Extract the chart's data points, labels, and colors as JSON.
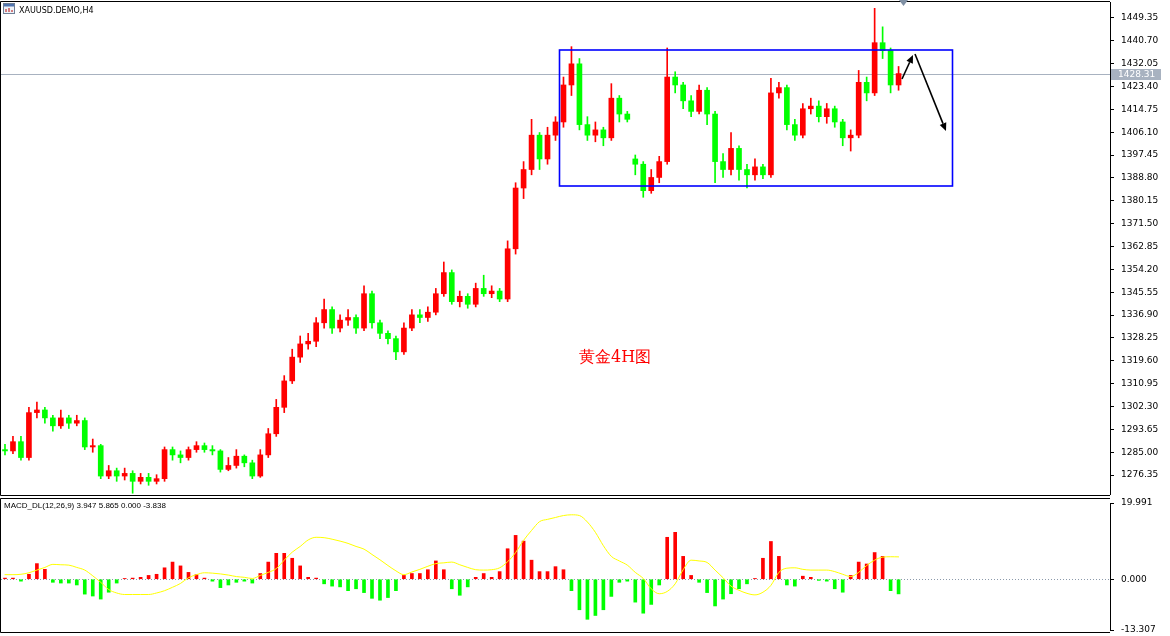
{
  "chart_data": [
    {
      "type": "candlestick",
      "title": "XAUUSD.DEMO,H4",
      "categories": [
        null,
        null,
        null,
        null,
        null,
        null,
        null,
        null,
        null,
        null,
        null,
        null,
        null,
        null,
        null,
        null,
        null,
        null,
        null,
        null,
        null,
        null,
        null,
        null,
        null,
        null,
        null,
        null,
        null,
        null,
        null,
        null,
        null,
        null,
        null,
        null,
        null,
        null,
        null,
        null,
        null,
        null,
        null,
        null,
        null,
        null,
        null,
        null,
        null,
        null,
        null,
        null,
        null,
        null,
        null,
        null,
        null,
        null,
        null,
        null,
        null,
        null,
        null,
        null,
        null,
        null,
        null,
        null,
        null,
        null,
        null,
        null,
        null,
        null,
        null,
        null,
        null,
        null,
        null,
        null,
        null,
        null,
        null,
        null,
        null,
        null,
        null,
        null,
        null,
        null,
        null,
        null,
        null,
        null,
        null,
        null,
        null,
        null,
        null,
        null,
        null,
        null,
        null,
        null,
        null,
        null,
        null,
        null,
        null,
        null,
        null,
        null,
        null,
        null,
        null,
        null,
        null,
        null,
        null,
        null,
        null,
        null,
        null,
        null,
        null,
        null,
        null,
        null,
        null,
        null,
        null,
        null,
        null,
        null,
        null,
        null,
        null,
        null,
        null
      ],
      "ohlc": [
        [
          1286,
          1288,
          1284,
          1285.5
        ],
        [
          1285.5,
          1291,
          1284.5,
          1289
        ],
        [
          1289,
          1291,
          1282,
          1283
        ],
        [
          1283,
          1302,
          1282,
          1300
        ],
        [
          1300,
          1304,
          1298,
          1301
        ],
        [
          1301,
          1302,
          1296,
          1298
        ],
        [
          1298,
          1299,
          1293,
          1295
        ],
        [
          1295,
          1301,
          1294,
          1298
        ],
        [
          1298,
          1299,
          1294,
          1296
        ],
        [
          1296,
          1299,
          1295,
          1297
        ],
        [
          1297,
          1298,
          1286,
          1287
        ],
        [
          1287,
          1290,
          1285,
          1287.5
        ],
        [
          1287.5,
          1288,
          1275,
          1276
        ],
        [
          1276,
          1280,
          1275,
          1278
        ],
        [
          1278,
          1279,
          1274,
          1276
        ],
        [
          1276,
          1279,
          1274.5,
          1277
        ],
        [
          1277,
          1278,
          1269.5,
          1274
        ],
        [
          1274,
          1277,
          1273,
          1275.5
        ],
        [
          1275.5,
          1277,
          1272.5,
          1274
        ],
        [
          1274,
          1276.5,
          1273,
          1275
        ],
        [
          1275,
          1287,
          1274,
          1286
        ],
        [
          1286,
          1287,
          1282,
          1284
        ],
        [
          1284,
          1285.5,
          1281,
          1283
        ],
        [
          1283,
          1287,
          1282,
          1286
        ],
        [
          1286,
          1289,
          1285,
          1287.5
        ],
        [
          1287.5,
          1288.5,
          1285,
          1286
        ],
        [
          1286,
          1287.5,
          1284,
          1285.5
        ],
        [
          1285.5,
          1286,
          1277.5,
          1278.5
        ],
        [
          1278.5,
          1283,
          1278,
          1280
        ],
        [
          1280,
          1286,
          1279,
          1283.5
        ],
        [
          1283.5,
          1284,
          1279.5,
          1281
        ],
        [
          1281,
          1282,
          1275,
          1276
        ],
        [
          1276,
          1286,
          1275.5,
          1284
        ],
        [
          1284,
          1294,
          1283,
          1292
        ],
        [
          1292,
          1305,
          1291,
          1302
        ],
        [
          1302,
          1314,
          1300,
          1312
        ],
        [
          1312,
          1324,
          1311,
          1321
        ],
        [
          1321,
          1329,
          1319,
          1326
        ],
        [
          1326,
          1330,
          1324,
          1327
        ],
        [
          1327,
          1336,
          1325,
          1334
        ],
        [
          1334,
          1343,
          1332,
          1339
        ],
        [
          1339,
          1340,
          1330,
          1332
        ],
        [
          1332,
          1337,
          1330.5,
          1335
        ],
        [
          1335,
          1339,
          1333,
          1336
        ],
        [
          1336,
          1337,
          1330,
          1332
        ],
        [
          1332,
          1348,
          1331,
          1345
        ],
        [
          1345,
          1346,
          1332,
          1334
        ],
        [
          1334,
          1335,
          1328,
          1330
        ],
        [
          1330,
          1331,
          1326,
          1328
        ],
        [
          1328,
          1329,
          1320,
          1323
        ],
        [
          1323,
          1334,
          1322,
          1332
        ],
        [
          1332,
          1339,
          1331,
          1337
        ],
        [
          1337,
          1339,
          1334,
          1336
        ],
        [
          1336,
          1340,
          1334.5,
          1338
        ],
        [
          1338,
          1347,
          1337,
          1345
        ],
        [
          1345,
          1357,
          1344,
          1353
        ],
        [
          1353,
          1354,
          1341,
          1342
        ],
        [
          1342,
          1346,
          1340,
          1344
        ],
        [
          1344,
          1345,
          1339.5,
          1341
        ],
        [
          1341,
          1349,
          1340,
          1347
        ],
        [
          1347,
          1352,
          1344,
          1345
        ],
        [
          1345,
          1348,
          1343.5,
          1346
        ],
        [
          1346,
          1347,
          1342,
          1343
        ],
        [
          1343,
          1365,
          1342,
          1362
        ],
        [
          1362,
          1387,
          1360,
          1385
        ],
        [
          1385,
          1395,
          1381,
          1392
        ],
        [
          1392,
          1411,
          1390,
          1405
        ],
        [
          1405,
          1406,
          1392,
          1396
        ],
        [
          1396,
          1408,
          1394,
          1405
        ],
        [
          1405,
          1412,
          1403,
          1410
        ],
        [
          1410,
          1427,
          1408,
          1424
        ],
        [
          1424,
          1438.5,
          1420,
          1432
        ],
        [
          1432,
          1434,
          1407,
          1409
        ],
        [
          1409,
          1412,
          1403,
          1405
        ],
        [
          1405,
          1410,
          1402.5,
          1407
        ],
        [
          1407,
          1408,
          1401,
          1404
        ],
        [
          1404,
          1424.5,
          1403,
          1419
        ],
        [
          1419,
          1420,
          1410,
          1413
        ],
        [
          1413,
          1414,
          1410,
          1411
        ],
        [
          1396,
          1397.5,
          1390,
          1394
        ],
        [
          1394,
          1395,
          1381.5,
          1384
        ],
        [
          1384,
          1392,
          1383,
          1389
        ],
        [
          1389,
          1397,
          1387,
          1395
        ],
        [
          1395,
          1438,
          1394,
          1427
        ],
        [
          1427,
          1429,
          1421,
          1424
        ],
        [
          1424,
          1425,
          1415,
          1418
        ],
        [
          1418,
          1420,
          1412,
          1414
        ],
        [
          1414,
          1424,
          1413,
          1422
        ],
        [
          1422,
          1423,
          1409,
          1413
        ],
        [
          1413,
          1414,
          1387,
          1395
        ],
        [
          1395,
          1398,
          1389,
          1392
        ],
        [
          1392,
          1406,
          1390,
          1400
        ],
        [
          1400,
          1401,
          1388,
          1392
        ],
        [
          1392,
          1394,
          1385,
          1390
        ],
        [
          1390,
          1396,
          1388,
          1393
        ],
        [
          1393,
          1394,
          1388.5,
          1390
        ],
        [
          1390,
          1426.5,
          1389,
          1421
        ],
        [
          1421,
          1425,
          1419,
          1423
        ],
        [
          1423,
          1424,
          1407,
          1409
        ],
        [
          1409,
          1411,
          1403,
          1405
        ],
        [
          1405,
          1417,
          1404,
          1415
        ],
        [
          1415,
          1419,
          1413,
          1416
        ],
        [
          1416,
          1418,
          1410,
          1412
        ],
        [
          1412,
          1417,
          1409.5,
          1415
        ],
        [
          1415,
          1416,
          1408,
          1410
        ],
        [
          1410,
          1411,
          1401,
          1404
        ],
        [
          1404,
          1407,
          1399,
          1405
        ],
        [
          1405,
          1429.5,
          1404,
          1425
        ],
        [
          1425,
          1427,
          1418,
          1421
        ],
        [
          1421,
          1453,
          1420,
          1440
        ],
        [
          1440,
          1446,
          1434,
          1437
        ],
        [
          1437,
          1438,
          1421,
          1424
        ],
        [
          1424,
          1431,
          1422,
          1428.31
        ],
        null,
        null,
        null,
        null,
        null,
        null,
        null,
        null,
        null,
        null,
        null,
        null,
        null,
        null,
        null,
        null,
        null,
        null,
        null,
        null,
        null,
        null,
        null,
        null,
        null,
        null
      ],
      "colors": [
        "#00ff00",
        "#ff0000",
        "#00ff00",
        "#ff0000",
        "#ff0000",
        "#00ff00",
        "#00ff00",
        "#ff0000",
        "#00ff00",
        "#ff0000",
        "#00ff00",
        "#ff0000",
        "#00ff00",
        "#ff0000",
        "#00ff00",
        "#ff0000",
        "#00ff00",
        "#ff0000",
        "#00ff00",
        "#ff0000",
        "#ff0000",
        "#00ff00",
        "#00ff00",
        "#ff0000",
        "#ff0000",
        "#00ff00",
        "#00ff00",
        "#00ff00",
        "#ff0000",
        "#ff0000",
        "#00ff00",
        "#00ff00",
        "#ff0000",
        "#ff0000",
        "#ff0000",
        "#ff0000",
        "#ff0000",
        "#ff0000",
        "#ff0000",
        "#ff0000",
        "#ff0000",
        "#00ff00",
        "#ff0000",
        "#ff0000",
        "#00ff00",
        "#ff0000",
        "#00ff00",
        "#00ff00",
        "#00ff00",
        "#00ff00",
        "#ff0000",
        "#ff0000",
        "#00ff00",
        "#ff0000",
        "#ff0000",
        "#ff0000",
        "#00ff00",
        "#ff0000",
        "#00ff00",
        "#ff0000",
        "#00ff00",
        "#ff0000",
        "#00ff00",
        "#ff0000",
        "#ff0000",
        "#ff0000",
        "#ff0000",
        "#00ff00",
        "#ff0000",
        "#ff0000",
        "#ff0000",
        "#ff0000",
        "#00ff00",
        "#00ff00",
        "#ff0000",
        "#00ff00",
        "#ff0000",
        "#00ff00",
        "#00ff00",
        "#00ff00",
        "#00ff00",
        "#ff0000",
        "#ff0000",
        "#ff0000",
        "#00ff00",
        "#00ff00",
        "#00ff00",
        "#ff0000",
        "#00ff00",
        "#00ff00",
        "#00ff00",
        "#ff0000",
        "#00ff00",
        "#00ff00",
        "#ff0000",
        "#00ff00",
        "#ff0000",
        "#ff0000",
        "#00ff00",
        "#00ff00",
        "#ff0000",
        "#ff0000",
        "#00ff00",
        "#ff0000",
        "#00ff00",
        "#00ff00",
        "#ff0000",
        "#ff0000",
        "#00ff00",
        "#ff0000",
        "#00ff00",
        "#00ff00",
        "#ff0000",
        null,
        null,
        null,
        null,
        null,
        null,
        null,
        null,
        null,
        null,
        null,
        null,
        null,
        null,
        null,
        null,
        null,
        null,
        null,
        null,
        null,
        null,
        null,
        null,
        null,
        null
      ],
      "ylim": [
        1269.2,
        1455.4
      ],
      "yticks": [
        1449.35,
        {
          "value": 1440.7,
          "label": "1440.70"
        },
        1432.05,
        {
          "value": 1423.4,
          "label": "1423.40"
        },
        1414.75,
        {
          "value": 1406.1,
          "label": "1406.10"
        },
        1397.45,
        {
          "value": 1388.8,
          "label": "1388.80"
        },
        1380.15,
        {
          "value": 1371.5,
          "label": "1371.50"
        },
        1362.85,
        {
          "value": 1354.2,
          "label": "1354.20"
        },
        1345.55,
        {
          "value": 1336.9,
          "label": "1336.90"
        },
        1328.25,
        {
          "value": 1319.6,
          "label": "1319.60"
        },
        1310.95,
        {
          "value": 1302.3,
          "label": "1302.30"
        },
        1293.65,
        {
          "value": 1285,
          "label": "1285.00"
        },
        1276.35
      ],
      "ref_lines": [
        {
          "axis": "y",
          "value": 1428.31,
          "label": "1428.31",
          "color": "#a8b2c0"
        }
      ],
      "annotations": [
        "黄金4H图"
      ],
      "tick_labels": "y"
    },
    {
      "type": "bar",
      "title": "MACD_DL(12,26,9) 3.947 5.865 0.000 -3.838",
      "categories": [
        null,
        null,
        null,
        null,
        null,
        null,
        null,
        null,
        null,
        null,
        null,
        null,
        null,
        null,
        null,
        null,
        null,
        null,
        null,
        null,
        null,
        null,
        null,
        null,
        null,
        null,
        null,
        null,
        null,
        null,
        null,
        null,
        null,
        null,
        null,
        null,
        null,
        null,
        null,
        null,
        null,
        null,
        null,
        null,
        null,
        null,
        null,
        null,
        null,
        null,
        null,
        null,
        null,
        null,
        null,
        null,
        null,
        null,
        null,
        null,
        null,
        null,
        null,
        null,
        null,
        null,
        null,
        null,
        null,
        null,
        null,
        null,
        null,
        null,
        null,
        null,
        null,
        null,
        null,
        null,
        null,
        null,
        null,
        null,
        null,
        null,
        null,
        null,
        null,
        null,
        null,
        null,
        null,
        null,
        null,
        null,
        null,
        null,
        null,
        null,
        null,
        null,
        null,
        null,
        null,
        null,
        null,
        null,
        null,
        null,
        null,
        null,
        null,
        null,
        null,
        null,
        null,
        null,
        null,
        null,
        null,
        null,
        null,
        null,
        null,
        null,
        null,
        null,
        null,
        null,
        null,
        null,
        null,
        null,
        null,
        null,
        null,
        null,
        null
      ],
      "series": [
        {
          "type": "bar",
          "values": [
            0.3,
            0.3,
            -0.5,
            1.3,
            4.1,
            2.6,
            -0.8,
            -1.0,
            -1.0,
            -1.5,
            -3.9,
            -4.4,
            -5.2,
            -3.4,
            -1.0,
            0.2,
            0.3,
            0.5,
            1.0,
            1.3,
            3.0,
            4.5,
            3.5,
            1.8,
            1.2,
            0.3,
            -0.5,
            -2.2,
            -1.5,
            -0.8,
            -0.5,
            -1.0,
            1.5,
            4.5,
            6.8,
            6.8,
            5.5,
            3.5,
            0.5,
            0.3,
            -1.2,
            -1.8,
            -2.0,
            -3.0,
            -2.5,
            -3.5,
            -5.0,
            -5.5,
            -4.8,
            -3.0,
            1.0,
            1.5,
            1.5,
            2.5,
            4.8,
            2.5,
            -2.5,
            -4.2,
            -2.0,
            0.5,
            1.5,
            0.5,
            2.0,
            8.0,
            11.5,
            10.0,
            5.0,
            2.0,
            2.0,
            3.3,
            2.5,
            -3.0,
            -8.0,
            -10.5,
            -9.5,
            -8.0,
            -4.5,
            -0.8,
            -0.5,
            -6.0,
            -8.9,
            -6.6,
            -1.5,
            11.0,
            12.3,
            6.0,
            1.0,
            -0.8,
            -3.5,
            -7.0,
            -5.2,
            -3.8,
            -2.5,
            -1.2,
            0.2,
            5.5,
            9.9,
            6.0,
            -1.5,
            -1.8,
            0.8,
            0.5,
            -0.3,
            -0.5,
            -2.5,
            -3.4,
            1.0,
            4.5,
            4.0,
            7.0,
            6.0,
            -3.0,
            -3.838,
            null,
            null,
            null,
            null,
            null,
            null,
            null,
            null,
            null,
            null,
            null,
            null,
            null,
            null,
            null,
            null,
            null,
            null,
            null,
            null,
            null,
            null,
            null,
            null,
            null,
            null
          ],
          "colors": [
            "#ff0000",
            "#ff0000",
            "#00ff00",
            "#ff0000",
            "#ff0000",
            "#ff0000",
            "#00ff00",
            "#00ff00",
            "#00ff00",
            "#00ff00",
            "#00ff00",
            "#00ff00",
            "#00ff00",
            "#00ff00",
            "#00ff00",
            "#ff0000",
            "#ff0000",
            "#ff0000",
            "#ff0000",
            "#ff0000",
            "#ff0000",
            "#ff0000",
            "#ff0000",
            "#ff0000",
            "#ff0000",
            "#ff0000",
            "#00ff00",
            "#00ff00",
            "#00ff00",
            "#00ff00",
            "#00ff00",
            "#00ff00",
            "#ff0000",
            "#ff0000",
            "#ff0000",
            "#ff0000",
            "#ff0000",
            "#ff0000",
            "#ff0000",
            "#ff0000",
            "#00ff00",
            "#00ff00",
            "#00ff00",
            "#00ff00",
            "#00ff00",
            "#00ff00",
            "#00ff00",
            "#00ff00",
            "#00ff00",
            "#00ff00",
            "#ff0000",
            "#ff0000",
            "#ff0000",
            "#ff0000",
            "#ff0000",
            "#ff0000",
            "#00ff00",
            "#00ff00",
            "#00ff00",
            "#ff0000",
            "#ff0000",
            "#ff0000",
            "#ff0000",
            "#ff0000",
            "#ff0000",
            "#ff0000",
            "#ff0000",
            "#ff0000",
            "#ff0000",
            "#ff0000",
            "#ff0000",
            "#00ff00",
            "#00ff00",
            "#00ff00",
            "#00ff00",
            "#00ff00",
            "#00ff00",
            "#00ff00",
            "#00ff00",
            "#00ff00",
            "#00ff00",
            "#00ff00",
            "#00ff00",
            "#ff0000",
            "#ff0000",
            "#ff0000",
            "#ff0000",
            "#00ff00",
            "#00ff00",
            "#00ff00",
            "#00ff00",
            "#00ff00",
            "#00ff00",
            "#00ff00",
            "#ff0000",
            "#ff0000",
            "#ff0000",
            "#ff0000",
            "#00ff00",
            "#00ff00",
            "#ff0000",
            "#ff0000",
            "#00ff00",
            "#00ff00",
            "#00ff00",
            "#00ff00",
            "#ff0000",
            "#ff0000",
            "#ff0000",
            "#ff0000",
            "#ff0000",
            "#00ff00",
            "#00ff00",
            null,
            null,
            null,
            null,
            null,
            null,
            null,
            null,
            null,
            null,
            null,
            null,
            null,
            null,
            null,
            null,
            null,
            null,
            null,
            null,
            null,
            null,
            null,
            null,
            null,
            null
          ]
        },
        {
          "type": "line",
          "color": "#ffff00",
          "marker": "none",
          "values": [
            1.2,
            1.2,
            1.3,
            1.7,
            2.4,
            3.1,
            3.9,
            3.8,
            3.7,
            3.1,
            2.4,
            0.9,
            -0.8,
            -2.7,
            -3.6,
            -4.0,
            -4.0,
            -4.0,
            -4.0,
            -3.6,
            -3.0,
            -2.1,
            -1.1,
            0.4,
            1.2,
            1.7,
            1.6,
            1.4,
            1.1,
            0.7,
            0.5,
            0.2,
            1.0,
            1.8,
            2.8,
            5.0,
            7.1,
            8.6,
            10.3,
            11.0,
            10.9,
            10.5,
            10.0,
            9.4,
            8.6,
            7.9,
            6.5,
            5.1,
            3.6,
            2.2,
            1.2,
            1.9,
            2.6,
            3.4,
            4.1,
            4.3,
            4.5,
            3.8,
            3.1,
            2.5,
            2.4,
            2.5,
            3.0,
            4.6,
            7.0,
            10.2,
            12.8,
            15.1,
            15.7,
            16.2,
            16.7,
            16.9,
            16.7,
            15.0,
            12.3,
            8.8,
            6.0,
            4.8,
            3.7,
            1.8,
            0.2,
            -2.5,
            -3.8,
            -3.2,
            -1.2,
            2.5,
            5.0,
            4.8,
            4.4,
            2.4,
            0.4,
            -1.8,
            -2.9,
            -3.7,
            -4.1,
            -3.4,
            -1.6,
            1.8,
            2.9,
            3.0,
            2.6,
            2.4,
            2.4,
            2.4,
            2.0,
            1.3,
            0.7,
            1.8,
            3.6,
            5.0,
            5.8,
            5.9,
            5.865,
            null,
            null,
            null,
            null,
            null,
            null,
            null,
            null,
            null,
            null,
            null,
            null,
            null,
            null,
            null,
            null,
            null,
            null,
            null,
            null,
            null,
            null,
            null,
            null,
            null,
            null
          ]
        }
      ],
      "ylim": [
        -13.307,
        19.991
      ],
      "yticks": [
        19.991,
        {
          "value": 0,
          "label": "0.000"
        },
        -13.307
      ],
      "ref_lines": [
        {
          "axis": "y",
          "value": 0,
          "line_style": "dotted",
          "color": "#8c9aab"
        }
      ],
      "tick_labels": "y"
    }
  ]
}
